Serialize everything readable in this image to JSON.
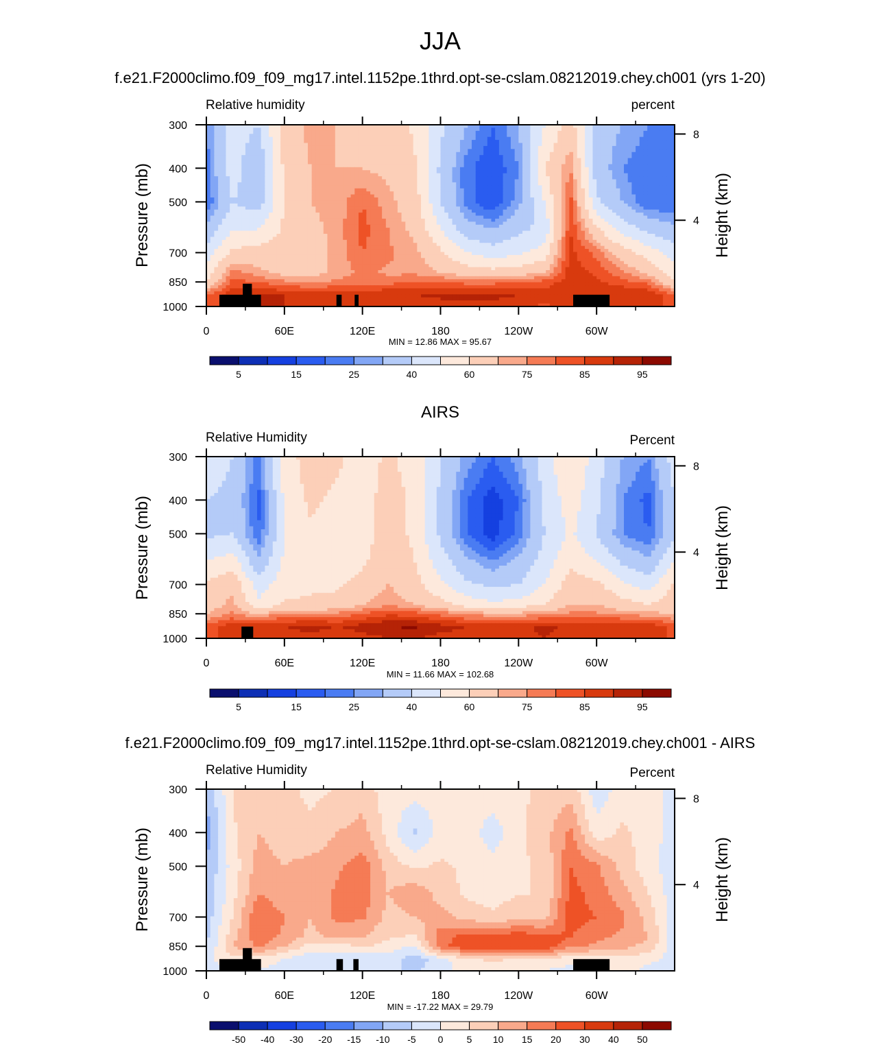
{
  "page": {
    "title": "JJA"
  },
  "colors": {
    "blue_to_red": [
      "#0a0f6e",
      "#0d2fb5",
      "#1540e0",
      "#2a5cf0",
      "#4a7cf2",
      "#82a6f5",
      "#b4cbf8",
      "#dbe6fb",
      "#fde9dc",
      "#fccfb8",
      "#f9a98b",
      "#f57b55",
      "#ee5226",
      "#d83a0e",
      "#b52306",
      "#8c0a00"
    ],
    "land": "#000000"
  },
  "panels": [
    {
      "heading": "f.e21.F2000climo.f09_f09_mg17.intel.1152pe.1thrd.opt-se-cslam.08212019.chey.ch001 (yrs 1-20)",
      "var_label": "Relative humidity",
      "units_label": "percent",
      "ylabel": "Pressure (mb)",
      "ylabel_right": "Height (km)",
      "stats": "MIN =  12.86  MAX =  95.67"
    },
    {
      "heading": "AIRS",
      "var_label": "Relative Humidity",
      "units_label": "Percent",
      "ylabel": "Pressure (mb)",
      "ylabel_right": "Height (km)",
      "stats": "MIN =  11.66  MAX = 102.68"
    },
    {
      "heading": "f.e21.F2000climo.f09_f09_mg17.intel.1152pe.1thrd.opt-se-cslam.08212019.chey.ch001 - AIRS",
      "var_label": "Relative Humidity",
      "units_label": "Percent",
      "ylabel": "Pressure (mb)",
      "ylabel_right": "Height (km)",
      "stats": "MIN = -17.22  MAX =  29.79"
    }
  ],
  "chart_data": [
    {
      "type": "heatmap",
      "title": "Relative humidity",
      "units": "percent",
      "xlabel": "",
      "ylabel": "Pressure (mb)",
      "ylabel_right": "Height (km)",
      "x_ticks": [
        "0",
        "60E",
        "120E",
        "180",
        "120W",
        "60W"
      ],
      "x_tick_values": [
        0,
        60,
        120,
        180,
        240,
        300
      ],
      "xlim": [
        0,
        360
      ],
      "y_ticks": [
        "300",
        "400",
        "500",
        "700",
        "850",
        "1000"
      ],
      "y_tick_values": [
        300,
        400,
        500,
        700,
        850,
        1000
      ],
      "ylim": [
        1000,
        300
      ],
      "y_scale": "log",
      "right_ticks": [
        "8",
        "4"
      ],
      "right_tick_values": [
        8,
        4
      ],
      "levels": [
        0,
        5,
        10,
        15,
        20,
        25,
        30,
        40,
        50,
        60,
        70,
        75,
        80,
        85,
        90,
        95,
        100
      ],
      "colorbar_labels": [
        "5",
        "15",
        "25",
        "40",
        "60",
        "75",
        "85",
        "95"
      ],
      "min": 12.86,
      "max": 95.67,
      "field": {
        "pressure": [
          300,
          400,
          500,
          600,
          700,
          800,
          850,
          925,
          1000
        ],
        "lon": [
          0,
          20,
          40,
          60,
          80,
          100,
          120,
          140,
          160,
          180,
          200,
          220,
          240,
          260,
          280,
          300,
          320,
          340,
          360
        ],
        "values": [
          [
            25,
            45,
            40,
            65,
            72,
            70,
            60,
            68,
            58,
            42,
            30,
            20,
            30,
            50,
            65,
            35,
            30,
            25,
            25
          ],
          [
            22,
            45,
            30,
            62,
            70,
            70,
            70,
            68,
            62,
            38,
            22,
            15,
            25,
            60,
            75,
            35,
            25,
            20,
            22
          ],
          [
            20,
            40,
            35,
            60,
            70,
            72,
            80,
            72,
            65,
            40,
            22,
            15,
            28,
            50,
            82,
            42,
            30,
            20,
            20
          ],
          [
            32,
            50,
            50,
            62,
            68,
            72,
            82,
            75,
            68,
            50,
            35,
            30,
            38,
            42,
            85,
            62,
            45,
            38,
            32
          ],
          [
            45,
            62,
            65,
            64,
            65,
            72,
            80,
            76,
            72,
            62,
            50,
            45,
            48,
            55,
            87,
            78,
            65,
            55,
            45
          ],
          [
            55,
            78,
            72,
            68,
            67,
            72,
            76,
            74,
            74,
            70,
            66,
            64,
            66,
            70,
            88,
            84,
            76,
            68,
            55
          ],
          [
            60,
            82,
            80,
            76,
            74,
            76,
            78,
            78,
            80,
            80,
            78,
            78,
            80,
            82,
            88,
            86,
            82,
            78,
            60
          ],
          [
            80,
            88,
            90,
            90,
            88,
            88,
            88,
            90,
            90,
            91,
            92,
            92,
            90,
            88,
            90,
            88,
            90,
            90,
            80
          ],
          [
            82,
            86,
            90,
            90,
            86,
            86,
            88,
            86,
            88,
            88,
            88,
            88,
            86,
            84,
            86,
            86,
            88,
            88,
            82
          ]
        ]
      },
      "land_boxes": [
        {
          "lon_start": 10,
          "lon_end": 42,
          "p_top": 925
        },
        {
          "lon_start": 28,
          "lon_end": 35,
          "p_top": 860
        },
        {
          "lon_start": 100,
          "lon_end": 104,
          "p_top": 925
        },
        {
          "lon_start": 114,
          "lon_end": 117,
          "p_top": 925
        },
        {
          "lon_start": 282,
          "lon_end": 310,
          "p_top": 925
        }
      ]
    },
    {
      "type": "heatmap",
      "title": "Relative Humidity",
      "units": "Percent",
      "xlabel": "",
      "ylabel": "Pressure (mb)",
      "ylabel_right": "Height (km)",
      "x_ticks": [
        "0",
        "60E",
        "120E",
        "180",
        "120W",
        "60W"
      ],
      "x_tick_values": [
        0,
        60,
        120,
        180,
        240,
        300
      ],
      "xlim": [
        0,
        360
      ],
      "y_ticks": [
        "300",
        "400",
        "500",
        "700",
        "850",
        "1000"
      ],
      "y_tick_values": [
        300,
        400,
        500,
        700,
        850,
        1000
      ],
      "ylim": [
        1000,
        300
      ],
      "y_scale": "log",
      "right_ticks": [
        "8",
        "4"
      ],
      "right_tick_values": [
        8,
        4
      ],
      "levels": [
        0,
        5,
        10,
        15,
        20,
        25,
        30,
        40,
        50,
        60,
        70,
        75,
        80,
        85,
        90,
        95,
        100
      ],
      "colorbar_labels": [
        "5",
        "15",
        "25",
        "40",
        "60",
        "75",
        "85",
        "95"
      ],
      "min": 11.66,
      "max": 102.68,
      "field": {
        "pressure": [
          300,
          400,
          500,
          600,
          700,
          800,
          850,
          925,
          1000
        ],
        "lon": [
          0,
          20,
          40,
          60,
          80,
          100,
          120,
          140,
          160,
          180,
          200,
          220,
          240,
          260,
          280,
          300,
          320,
          340,
          360
        ],
        "values": [
          [
            45,
            40,
            22,
            55,
            65,
            62,
            55,
            62,
            55,
            40,
            28,
            20,
            28,
            45,
            60,
            45,
            30,
            25,
            45
          ],
          [
            40,
            38,
            18,
            52,
            62,
            58,
            55,
            65,
            58,
            38,
            20,
            12,
            20,
            42,
            55,
            42,
            25,
            18,
            40
          ],
          [
            38,
            40,
            20,
            50,
            58,
            55,
            55,
            65,
            58,
            38,
            20,
            12,
            22,
            40,
            52,
            40,
            25,
            20,
            38
          ],
          [
            50,
            55,
            32,
            52,
            58,
            55,
            58,
            68,
            60,
            45,
            32,
            25,
            32,
            45,
            58,
            50,
            38,
            32,
            50
          ],
          [
            62,
            68,
            45,
            55,
            58,
            58,
            64,
            70,
            64,
            52,
            42,
            38,
            40,
            50,
            65,
            62,
            52,
            45,
            62
          ],
          [
            66,
            72,
            52,
            62,
            62,
            64,
            70,
            74,
            70,
            64,
            56,
            52,
            55,
            60,
            70,
            70,
            64,
            60,
            66
          ],
          [
            70,
            76,
            70,
            76,
            76,
            76,
            80,
            84,
            82,
            78,
            74,
            72,
            72,
            74,
            76,
            76,
            74,
            72,
            70
          ],
          [
            82,
            88,
            88,
            90,
            92,
            90,
            92,
            95,
            96,
            92,
            90,
            88,
            88,
            92,
            88,
            88,
            90,
            90,
            82
          ],
          [
            84,
            86,
            88,
            88,
            88,
            86,
            88,
            90,
            90,
            88,
            88,
            88,
            86,
            90,
            86,
            86,
            88,
            88,
            84
          ]
        ]
      },
      "land_boxes": [
        {
          "lon_start": 27,
          "lon_end": 36,
          "p_top": 925
        }
      ]
    },
    {
      "type": "heatmap",
      "title": "Relative Humidity",
      "units": "Percent",
      "xlabel": "",
      "ylabel": "Pressure (mb)",
      "ylabel_right": "Height (km)",
      "x_ticks": [
        "0",
        "60E",
        "120E",
        "180",
        "120W",
        "60W"
      ],
      "x_tick_values": [
        0,
        60,
        120,
        180,
        240,
        300
      ],
      "xlim": [
        0,
        360
      ],
      "y_ticks": [
        "300",
        "400",
        "500",
        "700",
        "850",
        "1000"
      ],
      "y_tick_values": [
        300,
        400,
        500,
        700,
        850,
        1000
      ],
      "ylim": [
        1000,
        300
      ],
      "y_scale": "log",
      "right_ticks": [
        "8",
        "4"
      ],
      "right_tick_values": [
        8,
        4
      ],
      "levels": [
        -60,
        -50,
        -40,
        -30,
        -20,
        -15,
        -10,
        -5,
        0,
        5,
        10,
        15,
        20,
        30,
        40,
        50,
        60
      ],
      "colorbar_labels": [
        "-50",
        "-40",
        "-30",
        "-20",
        "-15",
        "-10",
        "-5",
        "0",
        "5",
        "10",
        "15",
        "20",
        "30",
        "40",
        "50"
      ],
      "min": -17.22,
      "max": 29.79,
      "field": {
        "pressure": [
          300,
          400,
          500,
          600,
          700,
          800,
          850,
          925,
          1000
        ],
        "lon": [
          0,
          20,
          40,
          60,
          80,
          100,
          120,
          140,
          160,
          180,
          200,
          220,
          240,
          260,
          280,
          300,
          320,
          340,
          360
        ],
        "values": [
          [
            -10,
            5,
            10,
            6,
            4,
            5,
            8,
            2,
            2,
            2,
            3,
            3,
            4,
            6,
            8,
            -3,
            2,
            3,
            -3
          ],
          [
            -12,
            4,
            10,
            8,
            6,
            10,
            12,
            3,
            -6,
            2,
            3,
            -3,
            4,
            8,
            16,
            2,
            6,
            3,
            -3
          ],
          [
            -10,
            2,
            12,
            10,
            12,
            14,
            18,
            8,
            4,
            6,
            4,
            2,
            4,
            6,
            20,
            16,
            8,
            2,
            -3
          ],
          [
            -8,
            3,
            15,
            12,
            10,
            16,
            18,
            10,
            14,
            8,
            4,
            3,
            5,
            5,
            22,
            18,
            12,
            5,
            -3
          ],
          [
            -8,
            5,
            20,
            15,
            10,
            16,
            16,
            8,
            10,
            12,
            8,
            6,
            8,
            8,
            22,
            20,
            16,
            8,
            -3
          ],
          [
            -6,
            8,
            18,
            14,
            8,
            12,
            10,
            6,
            4,
            18,
            22,
            22,
            24,
            22,
            20,
            16,
            14,
            10,
            -3
          ],
          [
            -6,
            10,
            16,
            10,
            3,
            2,
            6,
            2,
            0,
            18,
            24,
            26,
            28,
            24,
            16,
            14,
            12,
            8,
            -3
          ],
          [
            -2,
            4,
            2,
            0,
            -4,
            -2,
            -4,
            -2,
            -8,
            -2,
            4,
            6,
            4,
            4,
            2,
            2,
            3,
            2,
            -3
          ],
          [
            -2,
            -2,
            0,
            -2,
            -4,
            -2,
            -4,
            -4,
            -6,
            -2,
            2,
            2,
            2,
            0,
            -2,
            0,
            2,
            -2,
            -3
          ]
        ]
      },
      "land_boxes": [
        {
          "lon_start": 10,
          "lon_end": 42,
          "p_top": 925
        },
        {
          "lon_start": 28,
          "lon_end": 35,
          "p_top": 860
        },
        {
          "lon_start": 100,
          "lon_end": 105,
          "p_top": 925
        },
        {
          "lon_start": 113,
          "lon_end": 117,
          "p_top": 925
        },
        {
          "lon_start": 282,
          "lon_end": 310,
          "p_top": 925
        }
      ]
    }
  ]
}
